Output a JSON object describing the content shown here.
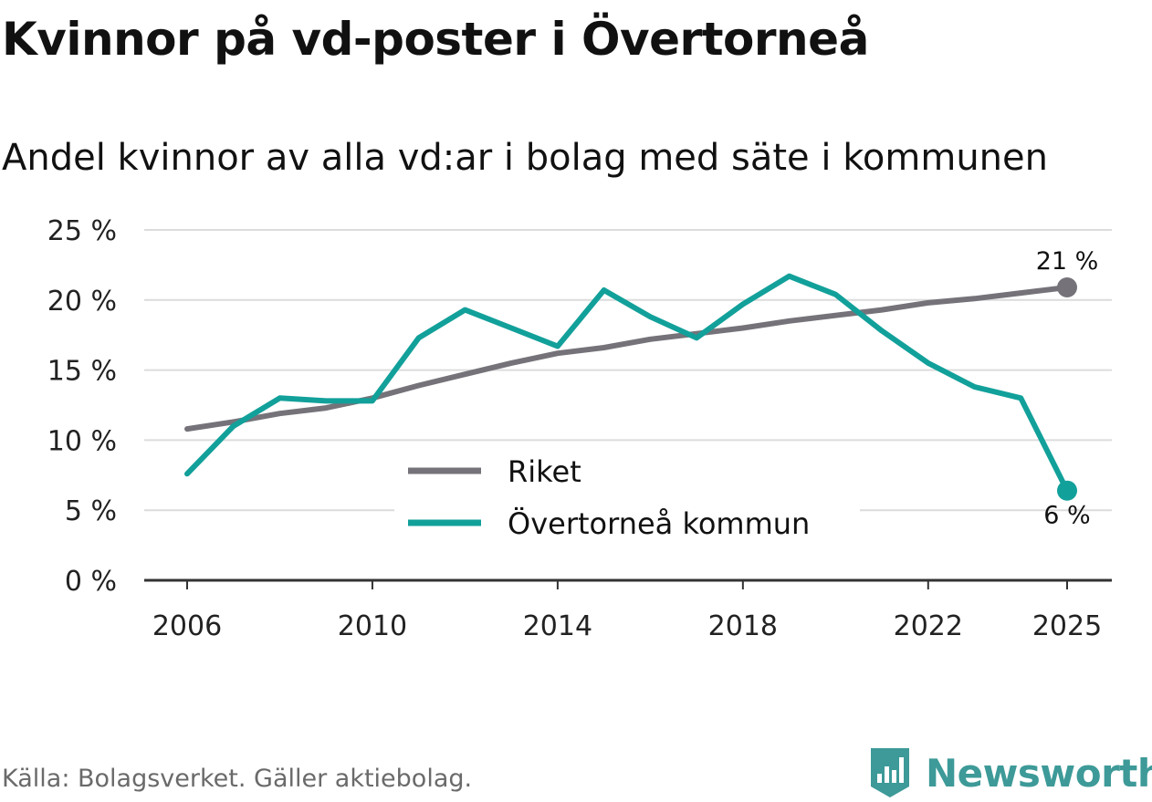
{
  "title": "Kvinnor på vd-poster i Övertorneå",
  "subtitle": "Andel kvinnor av alla vd:ar i bolag med säte i kommunen",
  "source": "Källa: Bolagsverket. Gäller aktiebolag.",
  "brand": {
    "name": "Newsworthy",
    "icon": "newsworthy-logo-icon",
    "color": "#3d9a98"
  },
  "chart_data": {
    "type": "line",
    "x": [
      2006,
      2007,
      2008,
      2009,
      2010,
      2011,
      2012,
      2013,
      2014,
      2015,
      2016,
      2017,
      2018,
      2019,
      2020,
      2021,
      2022,
      2023,
      2024,
      2025
    ],
    "series": [
      {
        "name": "Riket",
        "color": "#757379",
        "values": [
          10.8,
          11.3,
          11.9,
          12.3,
          13.0,
          13.9,
          14.7,
          15.5,
          16.2,
          16.6,
          17.2,
          17.6,
          18.0,
          18.5,
          18.9,
          19.3,
          19.8,
          20.1,
          20.5,
          20.9
        ]
      },
      {
        "name": "Övertorneå kommun",
        "color": "#12a09a",
        "values": [
          7.6,
          11.0,
          13.0,
          12.8,
          12.8,
          17.3,
          19.3,
          18.0,
          16.7,
          20.7,
          18.8,
          17.3,
          19.7,
          21.7,
          20.4,
          17.8,
          15.5,
          13.8,
          13.0,
          6.4
        ]
      }
    ],
    "end_labels": [
      {
        "series": "Riket",
        "text": "21 %"
      },
      {
        "series": "Övertorneå kommun",
        "text": "6 %"
      }
    ],
    "y_ticks": [
      0,
      5,
      10,
      15,
      20,
      25
    ],
    "y_tick_labels": [
      "0 %",
      "5 %",
      "10 %",
      "15 %",
      "20 %",
      "25 %"
    ],
    "x_ticks": [
      2006,
      2010,
      2014,
      2018,
      2022,
      2025
    ],
    "x_tick_labels": [
      "2006",
      "2010",
      "2014",
      "2018",
      "2022",
      "2025"
    ],
    "ylim": [
      0,
      25
    ],
    "xlim": [
      2006,
      2025
    ],
    "grid": true,
    "legend": "center-bottom",
    "xlabel": "",
    "ylabel": ""
  }
}
